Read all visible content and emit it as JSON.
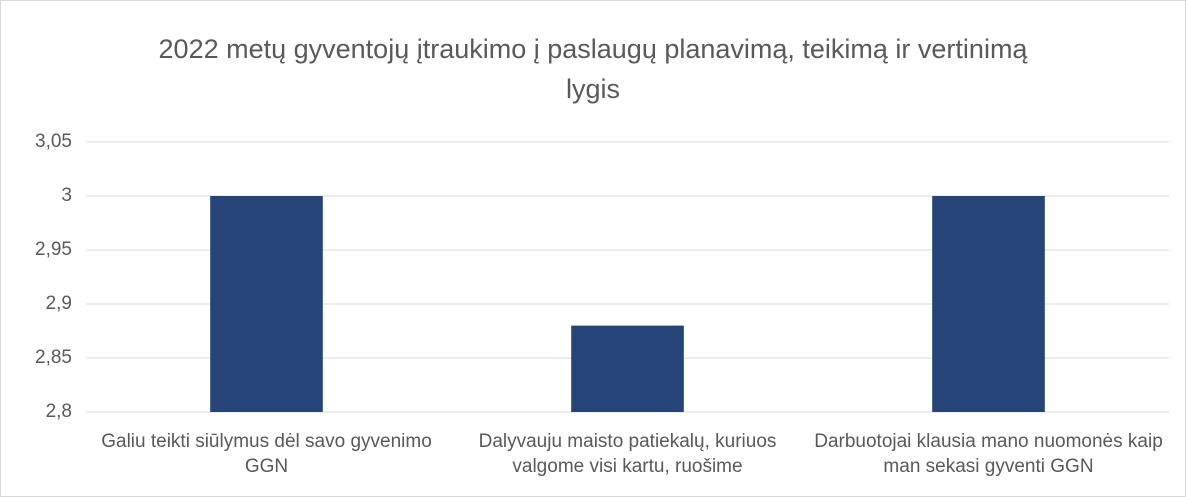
{
  "chart_data": {
    "type": "bar",
    "title": "2022 metų gyventojų įtraukimo į paslaugų planavimą, teikimą ir vertinimą lygis",
    "categories": [
      "Galiu teikti siūlymus dėl savo gyvenimo GGN",
      "Dalyvauju maisto patiekalų, kuriuos valgome visi kartu, ruošime",
      "Darbuotojai klausia mano nuomonės kaip man sekasi gyventi GGN"
    ],
    "values": [
      3,
      2.88,
      3
    ],
    "color": "#264478",
    "ylim": [
      2.8,
      3.05
    ],
    "yticks": [
      {
        "value": 2.8,
        "label": "2,8"
      },
      {
        "value": 2.85,
        "label": "2,85"
      },
      {
        "value": 2.9,
        "label": "2,9"
      },
      {
        "value": 2.95,
        "label": "2,95"
      },
      3,
      {
        "value": 3.05,
        "label": "3,05"
      }
    ],
    "grid": true
  }
}
